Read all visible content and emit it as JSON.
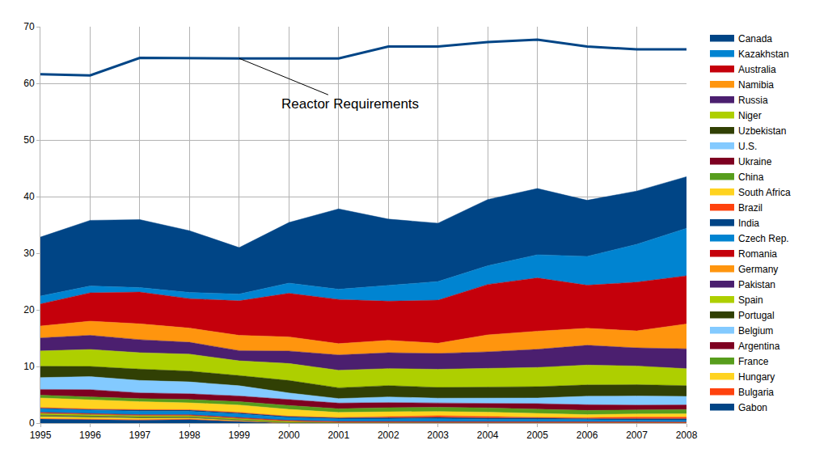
{
  "chart_data": {
    "type": "area",
    "stacked": true,
    "grid": true,
    "legend": "right",
    "x": [
      1995,
      1996,
      1997,
      1998,
      1999,
      2000,
      2001,
      2002,
      2003,
      2004,
      2005,
      2006,
      2007,
      2008
    ],
    "xlim": [
      1995,
      2008
    ],
    "xticks": [
      1995,
      1996,
      1997,
      1998,
      1999,
      2000,
      2001,
      2002,
      2003,
      2004,
      2005,
      2006,
      2007,
      2008
    ],
    "ylim": [
      0,
      70
    ],
    "yticks": [
      0,
      10,
      20,
      30,
      40,
      50,
      60,
      70
    ],
    "series": [
      {
        "name": "Reactor Requirements",
        "type": "line",
        "color": "#004586",
        "values": [
          61.6,
          61.4,
          64.5,
          64.4,
          64.4,
          64.4,
          64.4,
          66.5,
          66.5,
          67.3,
          67.7,
          66.5,
          66.0,
          66.0
        ]
      },
      {
        "name": "Canada",
        "color": "#004586",
        "values": [
          10.4,
          11.6,
          12.0,
          10.9,
          8.2,
          10.7,
          14.2,
          11.7,
          10.3,
          11.7,
          11.7,
          9.9,
          9.4,
          9.1
        ]
      },
      {
        "name": "Kazakhstan",
        "color": "#0084d1",
        "values": [
          1.4,
          1.2,
          0.8,
          1.1,
          1.2,
          1.8,
          1.8,
          2.8,
          3.3,
          3.3,
          4.1,
          5.1,
          6.7,
          8.4
        ]
      },
      {
        "name": "Australia",
        "color": "#c5000b",
        "values": [
          3.9,
          5.0,
          5.6,
          5.2,
          6.1,
          7.7,
          7.8,
          6.9,
          7.6,
          8.9,
          9.4,
          7.6,
          8.6,
          8.5
        ]
      },
      {
        "name": "Namibia",
        "color": "#ff950e",
        "values": [
          2.1,
          2.5,
          2.8,
          2.5,
          2.7,
          2.5,
          2.0,
          2.2,
          1.8,
          3.0,
          3.2,
          3.0,
          3.0,
          4.4
        ]
      },
      {
        "name": "Russia",
        "color": "#4b1f6f",
        "values": [
          2.3,
          2.5,
          2.3,
          2.1,
          1.8,
          2.2,
          2.7,
          2.8,
          2.8,
          2.9,
          3.2,
          3.5,
          3.2,
          3.5
        ]
      },
      {
        "name": "Niger",
        "color": "#aecf00",
        "values": [
          2.7,
          3.0,
          2.9,
          3.0,
          2.6,
          3.0,
          3.1,
          3.0,
          3.2,
          3.3,
          3.4,
          3.5,
          3.3,
          3.0
        ]
      },
      {
        "name": "Uzbekistan",
        "color": "#314004",
        "values": [
          2.0,
          1.8,
          2.0,
          1.9,
          1.8,
          2.2,
          1.9,
          2.0,
          1.9,
          2.0,
          2.0,
          2.0,
          2.0,
          1.9
        ]
      },
      {
        "name": "U.S.",
        "color": "#83caff",
        "values": [
          2.1,
          2.3,
          2.2,
          2.1,
          1.8,
          1.2,
          0.8,
          1.0,
          0.8,
          0.9,
          1.0,
          1.5,
          1.6,
          1.5
        ]
      },
      {
        "name": "Ukraine",
        "color": "#7e0021",
        "values": [
          1.0,
          1.3,
          1.0,
          1.0,
          1.0,
          1.0,
          1.0,
          0.9,
          0.8,
          0.8,
          1.0,
          1.0,
          0.85,
          0.8
        ]
      },
      {
        "name": "China",
        "color": "#579d1c",
        "values": [
          0.5,
          0.5,
          0.55,
          0.6,
          0.6,
          0.7,
          0.65,
          0.73,
          0.75,
          0.75,
          0.75,
          0.75,
          0.71,
          0.77
        ]
      },
      {
        "name": "South Africa",
        "color": "#ffd320",
        "values": [
          1.7,
          1.6,
          1.4,
          1.2,
          1.3,
          1.2,
          0.9,
          0.8,
          0.75,
          0.75,
          0.67,
          0.53,
          0.54,
          0.57
        ]
      },
      {
        "name": "Brazil",
        "color": "#ff420e",
        "values": [
          0.1,
          0.1,
          0.1,
          0.1,
          0.1,
          0.05,
          0.06,
          0.27,
          0.31,
          0.3,
          0.11,
          0.19,
          0.3,
          0.33
        ]
      },
      {
        "name": "India",
        "color": "#004586",
        "values": [
          0.15,
          0.15,
          0.2,
          0.2,
          0.2,
          0.2,
          0.2,
          0.2,
          0.23,
          0.23,
          0.23,
          0.18,
          0.27,
          0.27
        ]
      },
      {
        "name": "Czech Rep.",
        "color": "#0084d1",
        "values": [
          0.6,
          0.6,
          0.6,
          0.6,
          0.6,
          0.5,
          0.45,
          0.45,
          0.45,
          0.4,
          0.4,
          0.35,
          0.3,
          0.3
        ]
      },
      {
        "name": "Romania",
        "color": "#c5000b",
        "values": [
          0.1,
          0.1,
          0.1,
          0.1,
          0.1,
          0.1,
          0.1,
          0.1,
          0.1,
          0.1,
          0.1,
          0.1,
          0.1,
          0.1
        ]
      },
      {
        "name": "Germany",
        "color": "#ff950e",
        "values": [
          0.05,
          0.04,
          0.03,
          0.03,
          0.03,
          0.03,
          0.03,
          0.03,
          0.1,
          0.08,
          0.1,
          0.07,
          0.04,
          0
        ]
      },
      {
        "name": "Pakistan",
        "color": "#4b1f6f",
        "values": [
          0.03,
          0.03,
          0.03,
          0.03,
          0.03,
          0.02,
          0.05,
          0.04,
          0.04,
          0.05,
          0.05,
          0.05,
          0.05,
          0.05
        ]
      },
      {
        "name": "Spain",
        "color": "#aecf00",
        "values": [
          0.3,
          0.25,
          0.25,
          0.25,
          0.25,
          0.25,
          0.03,
          0.04,
          0.04,
          0,
          0,
          0,
          0,
          0
        ]
      },
      {
        "name": "Portugal",
        "color": "#314004",
        "values": [
          0.02,
          0.02,
          0.02,
          0.02,
          0.01,
          0.01,
          0.01,
          0.01,
          0,
          0,
          0,
          0,
          0,
          0
        ]
      },
      {
        "name": "Belgium",
        "color": "#83caff",
        "values": [
          0.04,
          0.03,
          0.03,
          0.02,
          0.02,
          0,
          0,
          0,
          0,
          0,
          0,
          0,
          0,
          0
        ]
      },
      {
        "name": "Argentina",
        "color": "#7e0021",
        "values": [
          0.05,
          0.03,
          0.02,
          0.02,
          0,
          0,
          0.02,
          0.02,
          0.02,
          0.01,
          0.01,
          0.01,
          0.01,
          0.01
        ]
      },
      {
        "name": "France",
        "color": "#579d1c",
        "values": [
          0.2,
          0.2,
          0.15,
          0.1,
          0.1,
          0.05,
          0.02,
          0.02,
          0.01,
          0.01,
          0.01,
          0.01,
          0.01,
          0.01
        ]
      },
      {
        "name": "Hungary",
        "color": "#ffd320",
        "values": [
          0.3,
          0.25,
          0.25,
          0.2,
          0.1,
          0.01,
          0.01,
          0.01,
          0,
          0,
          0,
          0,
          0,
          0
        ]
      },
      {
        "name": "Bulgaria",
        "color": "#ff420e",
        "values": [
          0.1,
          0.1,
          0.1,
          0.1,
          0.05,
          0,
          0,
          0,
          0,
          0,
          0,
          0,
          0,
          0
        ]
      },
      {
        "name": "Gabon",
        "color": "#004586",
        "values": [
          0.7,
          0.6,
          0.5,
          0.6,
          0.3,
          0,
          0,
          0,
          0,
          0,
          0,
          0,
          0,
          0
        ]
      }
    ]
  }
}
